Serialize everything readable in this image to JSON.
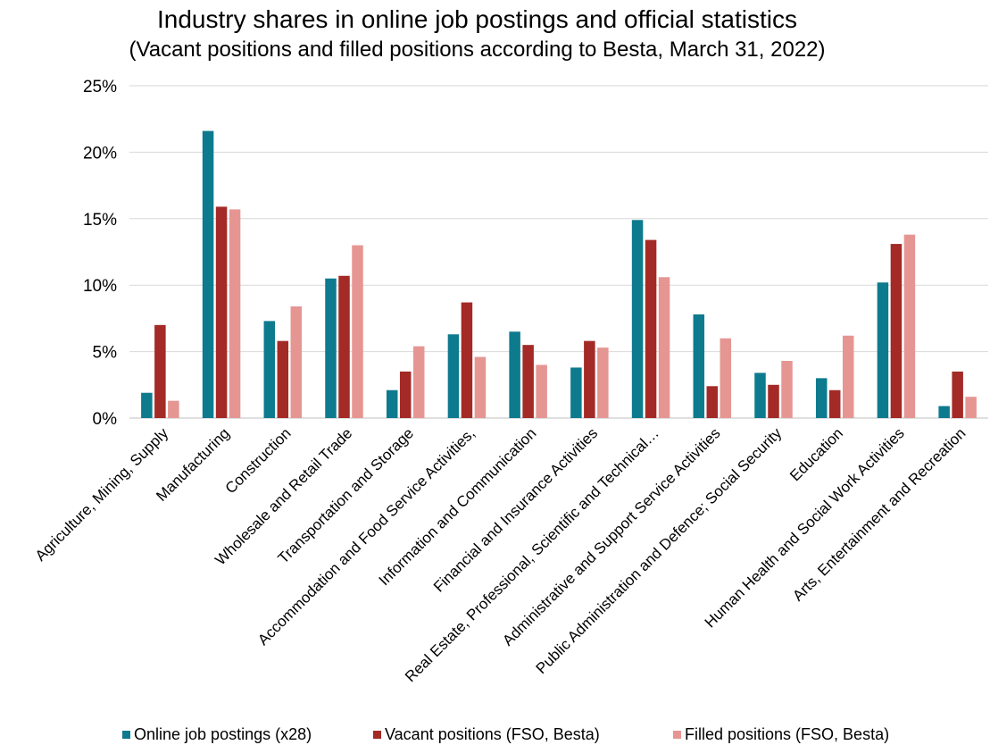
{
  "chart_data": {
    "type": "bar",
    "title": "Industry shares in online job postings and official statistics",
    "subtitle": "(Vacant positions and filled positions according to Besta, March 31, 2022)",
    "ylim": [
      0,
      25
    ],
    "yticks": [
      "0%",
      "5%",
      "10%",
      "15%",
      "20%",
      "25%"
    ],
    "ytick_values": [
      0,
      5,
      10,
      15,
      20,
      25
    ],
    "grid": true,
    "legend_position": "bottom",
    "categories": [
      "Agriculture, Mining, Supply",
      "Manufacturing",
      "Construction",
      "Wholesale and Retail Trade",
      "Transportation and Storage",
      "Accommodation and Food Service Activities,",
      "Information and Communication",
      "Financial and Insurance Activities",
      "Real Estate, Professional, Scientific and Technical…",
      "Administrative and Support Service Activities",
      "Public Administration and Defence; Social Security",
      "Education",
      "Human Health and Social Work Activities",
      "Arts, Entertainment and Recreation"
    ],
    "series": [
      {
        "name": "Online job postings (x28)",
        "color": "#0e7a8e",
        "values": [
          1.9,
          21.6,
          7.3,
          10.5,
          2.1,
          6.3,
          6.5,
          3.8,
          14.9,
          7.8,
          3.4,
          3.0,
          10.2,
          0.9
        ]
      },
      {
        "name": "Vacant positions (FSO, Besta)",
        "color": "#a32a26",
        "values": [
          7.0,
          15.9,
          5.8,
          10.7,
          3.5,
          8.7,
          5.5,
          5.8,
          13.4,
          2.4,
          2.5,
          2.1,
          13.1,
          3.5
        ]
      },
      {
        "name": "Filled positions (FSO, Besta)",
        "color": "#e59693",
        "values": [
          1.3,
          15.7,
          8.4,
          13.0,
          5.4,
          4.6,
          4.0,
          5.3,
          10.6,
          6.0,
          4.3,
          6.2,
          13.8,
          1.6
        ]
      }
    ]
  }
}
